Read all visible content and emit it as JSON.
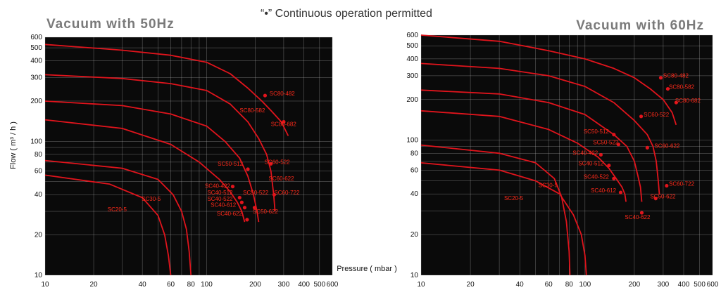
{
  "header": {
    "note": "“•”  Continuous operation permitted"
  },
  "colors": {
    "plot_bg": "#0a0a0a",
    "grid": "#bfbfbf",
    "curve": "#e0141c",
    "label": "#ff2a1a"
  },
  "chart_data": [
    {
      "type": "line",
      "title": "Vacuum with 50Hz",
      "xlabel": "Pressure ( mbar )",
      "ylabel": "Flow ( m³ / h )",
      "x_scale": "log",
      "y_scale": "log",
      "xlim": [
        10,
        600
      ],
      "ylim": [
        10,
        600
      ],
      "x_ticks": [
        10,
        20,
        40,
        60,
        80,
        100,
        200,
        300,
        400,
        500,
        600
      ],
      "y_ticks": [
        10,
        20,
        40,
        60,
        80,
        100,
        200,
        300,
        400,
        500,
        600
      ],
      "grid": true,
      "series": [
        {
          "points": [
            [
              10,
              530
            ],
            [
              30,
              480
            ],
            [
              60,
              440
            ],
            [
              100,
              390
            ],
            [
              140,
              320
            ],
            [
              180,
              250
            ],
            [
              220,
              200
            ],
            [
              250,
              170
            ],
            [
              290,
              140
            ],
            [
              320,
              110
            ]
          ]
        },
        {
          "points": [
            [
              10,
              315
            ],
            [
              30,
              295
            ],
            [
              60,
              270
            ],
            [
              100,
              240
            ],
            [
              140,
              190
            ],
            [
              180,
              140
            ],
            [
              210,
              105
            ],
            [
              235,
              80
            ],
            [
              250,
              60
            ],
            [
              260,
              40
            ],
            [
              265,
              30
            ]
          ]
        },
        {
          "points": [
            [
              10,
              200
            ],
            [
              30,
              185
            ],
            [
              60,
              160
            ],
            [
              100,
              130
            ],
            [
              130,
              100
            ],
            [
              160,
              75
            ],
            [
              180,
              55
            ],
            [
              195,
              40
            ],
            [
              205,
              30
            ],
            [
              210,
              25
            ]
          ]
        },
        {
          "points": [
            [
              10,
              145
            ],
            [
              30,
              125
            ],
            [
              60,
              95
            ],
            [
              90,
              70
            ],
            [
              120,
              52
            ],
            [
              140,
              42
            ],
            [
              155,
              35
            ],
            [
              165,
              30
            ],
            [
              172,
              25
            ]
          ]
        },
        {
          "points": [
            [
              10,
              72
            ],
            [
              30,
              63
            ],
            [
              50,
              52
            ],
            [
              62,
              40
            ],
            [
              70,
              30
            ],
            [
              75,
              22
            ],
            [
              78,
              15
            ],
            [
              80,
              10
            ]
          ]
        },
        {
          "points": [
            [
              10,
              56
            ],
            [
              25,
              48
            ],
            [
              40,
              38
            ],
            [
              50,
              28
            ],
            [
              55,
              20
            ],
            [
              58,
              14
            ],
            [
              60,
              10
            ]
          ]
        }
      ],
      "annotations": [
        {
          "text": "SC80-482",
          "x": 245,
          "y": 220,
          "ha": "start"
        },
        {
          "text": "SC80-582",
          "x": 230,
          "y": 165,
          "ha": "end"
        },
        {
          "text": "SC80-682",
          "x": 250,
          "y": 130,
          "ha": "start"
        },
        {
          "text": "SC50-512",
          "x": 168,
          "y": 66,
          "ha": "end"
        },
        {
          "text": "SC60-522",
          "x": 228,
          "y": 68,
          "ha": "start"
        },
        {
          "text": "SC60-622",
          "x": 242,
          "y": 51,
          "ha": "start"
        },
        {
          "text": "SC40-422",
          "x": 140,
          "y": 45,
          "ha": "end"
        },
        {
          "text": "SC40-512",
          "x": 145,
          "y": 40,
          "ha": "end"
        },
        {
          "text": "SC50-522",
          "x": 168,
          "y": 40,
          "ha": "start"
        },
        {
          "text": "SC60-722",
          "x": 262,
          "y": 40,
          "ha": "start"
        },
        {
          "text": "SC40-522",
          "x": 145,
          "y": 36,
          "ha": "end"
        },
        {
          "text": "SC40-612",
          "x": 152,
          "y": 32.5,
          "ha": "end"
        },
        {
          "text": "SC40-622",
          "x": 166,
          "y": 28,
          "ha": "end"
        },
        {
          "text": "SC50-622",
          "x": 193,
          "y": 29,
          "ha": "start"
        },
        {
          "text": "SC30-5",
          "x": 52,
          "y": 36,
          "ha": "end"
        },
        {
          "text": "SC20-5",
          "x": 32,
          "y": 30,
          "ha": "end"
        }
      ],
      "points": [
        [
          230,
          220
        ],
        [
          300,
          140
        ],
        [
          250,
          68
        ],
        [
          180,
          62
        ],
        [
          262,
          40
        ],
        [
          145,
          46
        ],
        [
          160,
          38
        ],
        [
          165,
          35
        ],
        [
          172,
          32
        ],
        [
          178,
          26
        ],
        [
          198,
          32
        ]
      ]
    },
    {
      "type": "line",
      "title": "Vacuum with 60Hz",
      "x_scale": "log",
      "y_scale": "log",
      "xlim": [
        10,
        600
      ],
      "ylim": [
        10,
        600
      ],
      "x_ticks": [
        10,
        20,
        40,
        60,
        80,
        100,
        200,
        300,
        400,
        500,
        600
      ],
      "y_ticks": [
        10,
        20,
        40,
        60,
        80,
        100,
        200,
        300,
        400,
        500,
        600
      ],
      "grid": true,
      "series": [
        {
          "points": [
            [
              10,
              600
            ],
            [
              30,
              540
            ],
            [
              60,
              460
            ],
            [
              100,
              400
            ],
            [
              150,
              340
            ],
            [
              200,
              290
            ],
            [
              250,
              240
            ],
            [
              300,
              200
            ],
            [
              340,
              160
            ],
            [
              360,
              130
            ]
          ]
        },
        {
          "points": [
            [
              10,
              370
            ],
            [
              30,
              340
            ],
            [
              60,
              300
            ],
            [
              100,
              250
            ],
            [
              150,
              190
            ],
            [
              200,
              140
            ],
            [
              240,
              110
            ],
            [
              260,
              90
            ],
            [
              272,
              70
            ],
            [
              280,
              50
            ],
            [
              284,
              40
            ]
          ]
        },
        {
          "points": [
            [
              10,
              235
            ],
            [
              30,
              220
            ],
            [
              60,
              190
            ],
            [
              100,
              155
            ],
            [
              150,
              110
            ],
            [
              180,
              90
            ],
            [
              200,
              70
            ],
            [
              210,
              55
            ],
            [
              218,
              45
            ],
            [
              222,
              35
            ]
          ]
        },
        {
          "points": [
            [
              10,
              165
            ],
            [
              30,
              150
            ],
            [
              60,
              120
            ],
            [
              90,
              95
            ],
            [
              120,
              75
            ],
            [
              140,
              62
            ],
            [
              155,
              52
            ],
            [
              168,
              45
            ],
            [
              175,
              40
            ],
            [
              178,
              35
            ]
          ]
        },
        {
          "points": [
            [
              10,
              92
            ],
            [
              30,
              80
            ],
            [
              50,
              68
            ],
            [
              65,
              52
            ],
            [
              72,
              38
            ],
            [
              77,
              25
            ],
            [
              80,
              15
            ],
            [
              81,
              10
            ]
          ]
        },
        {
          "points": [
            [
              10,
              68
            ],
            [
              30,
              60
            ],
            [
              50,
              50
            ],
            [
              70,
              40
            ],
            [
              85,
              28
            ],
            [
              95,
              20
            ],
            [
              100,
              14
            ],
            [
              102,
              10
            ]
          ]
        }
      ],
      "annotations": [
        {
          "text": "SC80-482",
          "x": 300,
          "y": 290,
          "ha": "start"
        },
        {
          "text": "SC80-582",
          "x": 325,
          "y": 240,
          "ha": "start"
        },
        {
          "text": "SC80-682",
          "x": 355,
          "y": 190,
          "ha": "start"
        },
        {
          "text": "SC60-522",
          "x": 228,
          "y": 150,
          "ha": "start"
        },
        {
          "text": "SC50-512",
          "x": 140,
          "y": 112,
          "ha": "end"
        },
        {
          "text": "SC50-522",
          "x": 160,
          "y": 93,
          "ha": "end"
        },
        {
          "text": "SC60-622",
          "x": 265,
          "y": 88,
          "ha": "start"
        },
        {
          "text": "SC40-422",
          "x": 120,
          "y": 78,
          "ha": "end"
        },
        {
          "text": "SC40-512",
          "x": 130,
          "y": 65,
          "ha": "end"
        },
        {
          "text": "SC40-522",
          "x": 140,
          "y": 52,
          "ha": "end"
        },
        {
          "text": "SC60-722",
          "x": 325,
          "y": 46,
          "ha": "start"
        },
        {
          "text": "SC40-612",
          "x": 155,
          "y": 41,
          "ha": "end"
        },
        {
          "text": "SC50-622",
          "x": 250,
          "y": 37,
          "ha": "start"
        },
        {
          "text": "SC40-622",
          "x": 175,
          "y": 26,
          "ha": "start"
        },
        {
          "text": "SC30-5",
          "x": 68,
          "y": 45,
          "ha": "end"
        },
        {
          "text": "SC20-5",
          "x": 42,
          "y": 36,
          "ha": "end"
        }
      ],
      "points": [
        [
          290,
          290
        ],
        [
          320,
          240
        ],
        [
          360,
          190
        ],
        [
          220,
          150
        ],
        [
          150,
          110
        ],
        [
          160,
          93
        ],
        [
          240,
          88
        ],
        [
          125,
          78
        ],
        [
          140,
          65
        ],
        [
          150,
          52
        ],
        [
          315,
          46
        ],
        [
          165,
          41
        ],
        [
          270,
          37
        ],
        [
          222,
          29
        ]
      ]
    }
  ],
  "shared": {
    "xlabel": "Pressure ( mbar )",
    "ylabel": "Flow ( m³ / h )"
  }
}
